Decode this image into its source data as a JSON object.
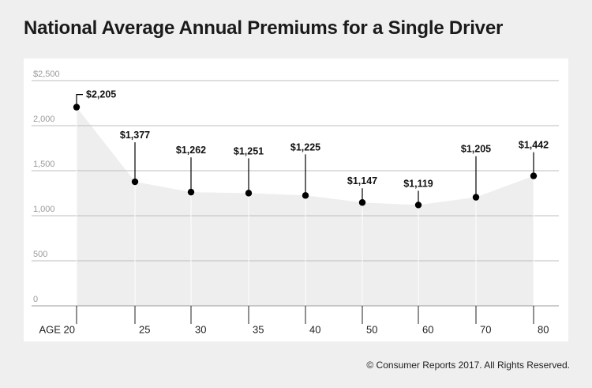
{
  "title": "National Average Annual Premiums for a Single Driver",
  "footer": "© Consumer Reports 2017. All Rights Reserved.",
  "colors": {
    "background": "#efefef",
    "panel": "#ffffff",
    "area": "#eeeeee",
    "grid": "#bdbdbd",
    "marker": "#000000"
  },
  "chart_data": {
    "type": "line",
    "title": "National Average Annual Premiums for a Single Driver",
    "xlabel": "",
    "ylabel": "",
    "categories": [
      "AGE 20",
      "25",
      "30",
      "35",
      "40",
      "50",
      "60",
      "70",
      "80"
    ],
    "values": [
      2205,
      1377,
      1262,
      1251,
      1225,
      1147,
      1119,
      1205,
      1442
    ],
    "data_labels": [
      "$2,205",
      "$1,377",
      "$1,262",
      "$1,251",
      "$1,225",
      "$1,147",
      "$1,119",
      "$1,205",
      "$1,442"
    ],
    "yticks": [
      0,
      500,
      1000,
      1500,
      2000,
      2500
    ],
    "ytick_labels": [
      "0",
      "500",
      "1,000",
      "1,500",
      "2,000",
      "$2,500"
    ],
    "ylim": [
      0,
      2500
    ],
    "grid": true,
    "area_fill": true
  }
}
